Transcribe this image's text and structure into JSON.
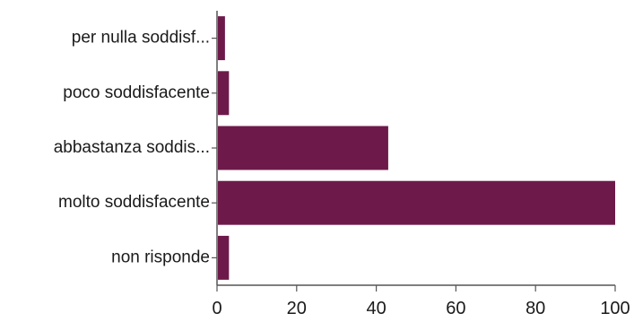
{
  "chart_data": {
    "type": "bar",
    "orientation": "horizontal",
    "title": "",
    "xlabel": "",
    "ylabel": "",
    "categories": [
      "per nulla soddisf...",
      "poco soddisfacente",
      "abbastanza soddis...",
      "molto soddisfacente",
      "non risponde"
    ],
    "values": [
      2,
      3,
      43,
      100,
      3
    ],
    "xlim": [
      0,
      100
    ],
    "xticks": [
      0,
      20,
      40,
      60,
      80,
      100
    ],
    "grid": false,
    "legend": "none",
    "bar_color": "#6d1a4a"
  }
}
